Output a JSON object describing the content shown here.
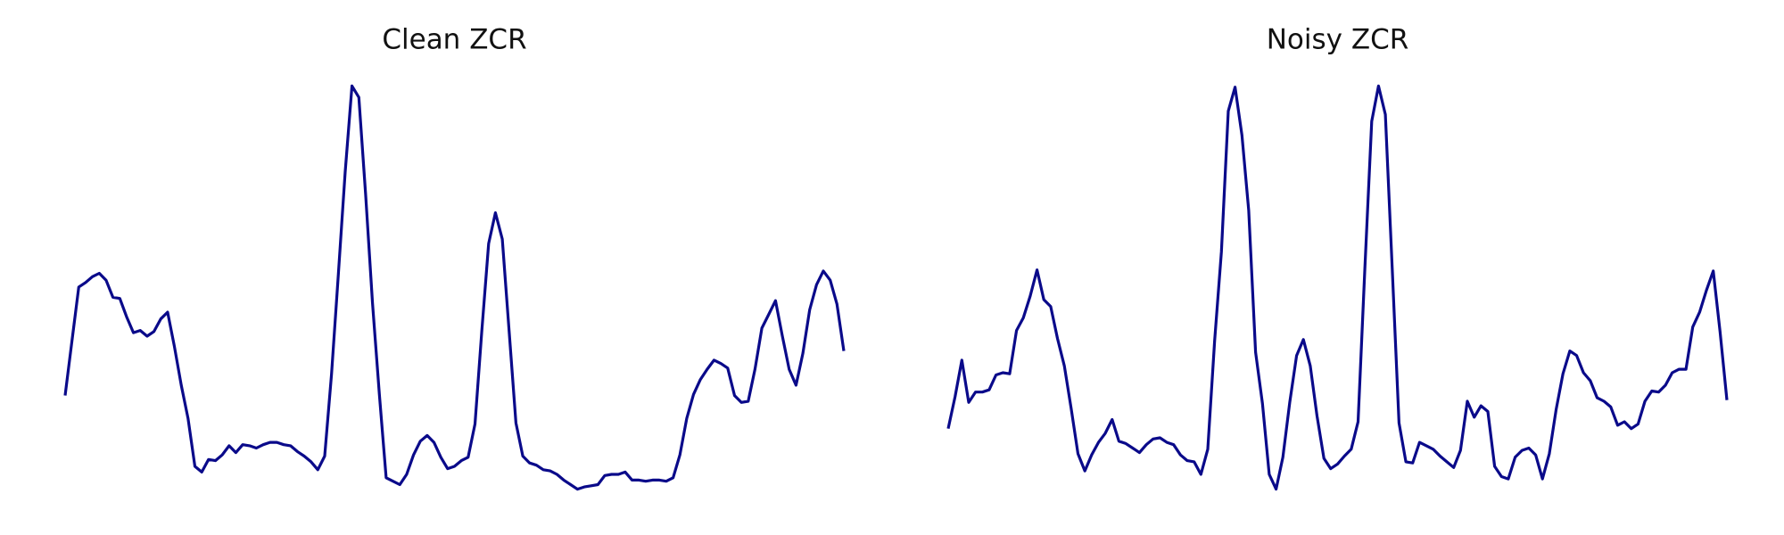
{
  "chart_data": [
    {
      "type": "line",
      "title": "Clean ZCR",
      "color": "#0a0a8a",
      "ylim": [
        0,
        370
      ],
      "values": [
        94,
        142,
        189,
        193,
        198,
        201,
        195,
        180,
        179,
        163,
        149,
        151,
        146,
        150,
        161,
        167,
        137,
        103,
        74,
        32,
        27,
        38,
        37,
        42,
        50,
        44,
        51,
        50,
        48,
        51,
        53,
        53,
        51,
        50,
        45,
        41,
        36,
        29,
        41,
        113,
        200,
        290,
        365,
        355,
        270,
        175,
        95,
        22,
        19,
        16,
        25,
        42,
        54,
        59,
        53,
        40,
        30,
        32,
        37,
        40,
        69,
        150,
        227,
        254,
        231,
        150,
        70,
        41,
        35,
        33,
        29,
        28,
        25,
        20,
        16,
        12,
        14,
        15,
        16,
        24,
        25,
        25,
        27,
        20,
        20,
        19,
        20,
        20,
        19,
        22,
        42,
        74,
        95,
        108,
        117,
        125,
        122,
        118,
        94,
        88,
        89,
        117,
        153,
        165,
        177,
        146,
        117,
        103,
        131,
        169,
        191,
        203,
        195,
        174,
        133
      ]
    },
    {
      "type": "line",
      "title": "Noisy ZCR",
      "color": "#0a0a8a",
      "ylim": [
        0,
        370
      ],
      "values": [
        65,
        93,
        125,
        88,
        97,
        97,
        99,
        112,
        114,
        113,
        151,
        162,
        181,
        204,
        178,
        172,
        144,
        120,
        83,
        43,
        28,
        42,
        53,
        61,
        73,
        54,
        52,
        48,
        44,
        51,
        56,
        57,
        53,
        51,
        42,
        37,
        36,
        25,
        47,
        142,
        220,
        343,
        364,
        322,
        256,
        132,
        87,
        25,
        12,
        40,
        88,
        129,
        143,
        120,
        76,
        39,
        30,
        34,
        41,
        47,
        71,
        205,
        334,
        365,
        340,
        205,
        70,
        36,
        35,
        53,
        50,
        47,
        41,
        36,
        31,
        46,
        89,
        75,
        85,
        80,
        32,
        23,
        21,
        40,
        46,
        48,
        42,
        21,
        43,
        82,
        113,
        133,
        129,
        114,
        107,
        92,
        89,
        84,
        68,
        71,
        65,
        69,
        89,
        98,
        97,
        103,
        114,
        117,
        117,
        154,
        167,
        186,
        203,
        150,
        90
      ]
    }
  ]
}
